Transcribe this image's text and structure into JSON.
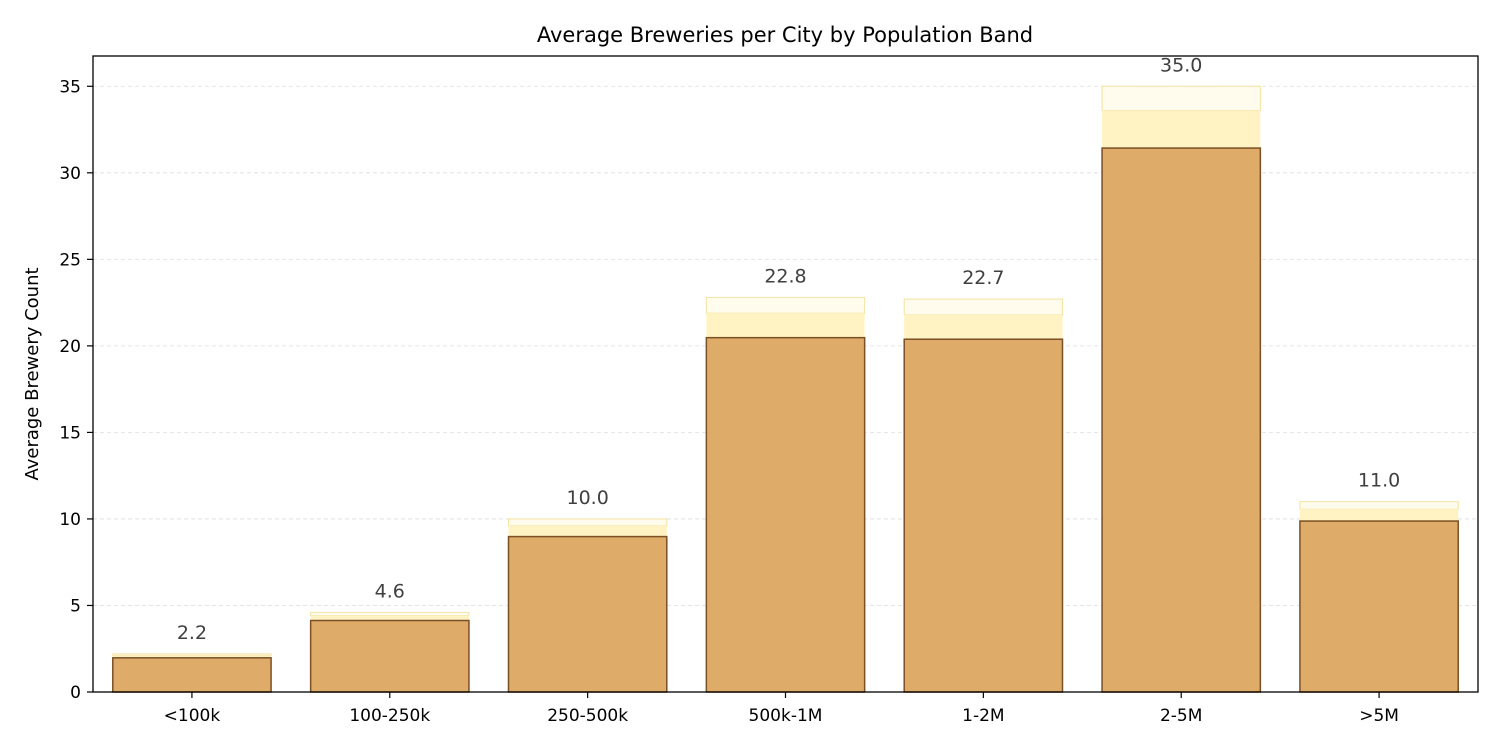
{
  "chart_data": {
    "type": "bar",
    "title": "Average Breweries per City by Population Band",
    "xlabel": "",
    "ylabel": "Average Brewery Count",
    "categories": [
      "<100k",
      "100-250k",
      "250-500k",
      "500k-1M",
      "1-2M",
      "2-5M",
      ">5M"
    ],
    "values": [
      2.2,
      4.6,
      10.0,
      22.8,
      22.7,
      35.0,
      11.0
    ],
    "data_labels": [
      "2.2",
      "4.6",
      "10.0",
      "22.8",
      "22.7",
      "35.0",
      "11.0"
    ],
    "ylim": [
      0,
      36.75
    ],
    "yticks": [
      0,
      5,
      10,
      15,
      20,
      25,
      30,
      35
    ],
    "grid": "y-dashed",
    "legend": "none",
    "colors": {
      "bar_fill": "#dfab68",
      "bar_edge": "#7a5025",
      "foam_mid": "#fff3c4",
      "foam_top": "#fffcee",
      "foam_edge": "#f3e2a2",
      "grid": "#dddddd",
      "data_label": "#404040"
    }
  }
}
